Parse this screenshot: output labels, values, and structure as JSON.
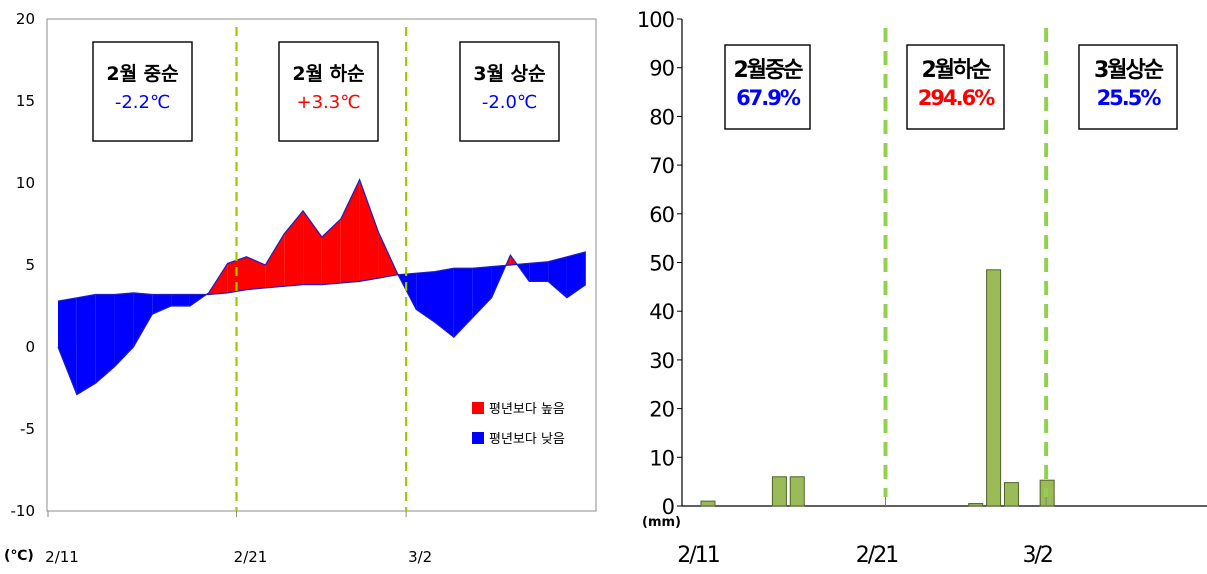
{
  "chart_data": [
    {
      "type": "area",
      "ylim": [
        -10,
        20
      ],
      "yticks": [
        "20",
        "15",
        "10",
        "5",
        "0",
        "-5",
        "-10"
      ],
      "xticks": [
        "2/11",
        "2/21",
        "3/2"
      ],
      "unit_label": "(℃)",
      "x": [
        "2/11",
        "2/12",
        "2/13",
        "2/14",
        "2/15",
        "2/16",
        "2/17",
        "2/18",
        "2/19",
        "2/20",
        "2/21",
        "2/22",
        "2/23",
        "2/24",
        "2/25",
        "2/26",
        "2/27",
        "2/28",
        "3/1",
        "3/2",
        "3/3",
        "3/4",
        "3/5",
        "3/6",
        "3/7",
        "3/8",
        "3/9",
        "3/10",
        "3/11"
      ],
      "series": [
        {
          "key": "actual",
          "values": [
            0.0,
            -2.9,
            -2.2,
            -1.2,
            0.0,
            2.0,
            2.5,
            2.5,
            3.3,
            5.1,
            5.5,
            5.0,
            6.9,
            8.3,
            6.7,
            7.8,
            10.2,
            7.0,
            4.5,
            2.3,
            1.5,
            0.6,
            1.8,
            3.0,
            5.6,
            4.0,
            4.0,
            3.0,
            3.8
          ]
        },
        {
          "key": "normal",
          "values": [
            2.8,
            3.0,
            3.2,
            3.2,
            3.3,
            3.2,
            3.2,
            3.2,
            3.2,
            3.3,
            3.5,
            3.6,
            3.7,
            3.8,
            3.8,
            3.9,
            4.0,
            4.2,
            4.4,
            4.5,
            4.6,
            4.8,
            4.8,
            4.9,
            5.0,
            5.1,
            5.2,
            5.5,
            5.8
          ]
        }
      ],
      "legend": {
        "placement": "bottom-right",
        "items": [
          {
            "label": "평년보다 높음",
            "color": "#ff0000"
          },
          {
            "label": "평년보다 낮음",
            "color": "#0000ff"
          }
        ]
      },
      "dividers": [
        "2/21",
        "3/2"
      ],
      "period_boxes": [
        {
          "title": "2월 중순",
          "value": "-2.2℃",
          "color": "#0000ff"
        },
        {
          "title": "2월 하순",
          "value": "+3.3℃",
          "color": "#ff0000"
        },
        {
          "title": "3월 상순",
          "value": "-2.0℃",
          "color": "#0000ff"
        }
      ],
      "colors": {
        "above": "#ff0000",
        "below": "#0000ff",
        "divider": "#99cc00"
      }
    },
    {
      "type": "bar",
      "ylim": [
        0,
        100
      ],
      "yticks": [
        "100",
        "90",
        "80",
        "70",
        "60",
        "50",
        "40",
        "30",
        "20",
        "10",
        "0"
      ],
      "xticks": [
        "2/11",
        "2/21",
        "3/2"
      ],
      "unit_label": "(mm)",
      "x": [
        "2/11",
        "2/12",
        "2/13",
        "2/14",
        "2/15",
        "2/16",
        "2/17",
        "2/18",
        "2/19",
        "2/20",
        "2/21",
        "2/22",
        "2/23",
        "2/24",
        "2/25",
        "2/26",
        "2/27",
        "2/28",
        "3/1",
        "3/2",
        "3/3",
        "3/4",
        "3/5",
        "3/6",
        "3/7",
        "3/8",
        "3/9",
        "3/10",
        "3/11"
      ],
      "values": [
        1.0,
        0,
        0,
        0,
        6.0,
        6.0,
        0,
        0,
        0,
        0,
        0,
        0,
        0,
        0,
        0,
        0.5,
        48.5,
        4.8,
        0,
        5.3,
        0,
        0,
        0,
        0,
        0,
        0,
        0,
        0,
        0
      ],
      "bar_color": "#9bbb59",
      "bar_edge": "#4f6228",
      "dividers": [
        "2/21",
        "3/2"
      ],
      "period_boxes": [
        {
          "title": "2월중순",
          "value": "67.9%",
          "color": "#0000ff"
        },
        {
          "title": "2월하순",
          "value": "294.6%",
          "color": "#ff0000"
        },
        {
          "title": "3월상순",
          "value": "25.5%",
          "color": "#0000ff"
        }
      ],
      "divider_color": "#92d050"
    }
  ]
}
